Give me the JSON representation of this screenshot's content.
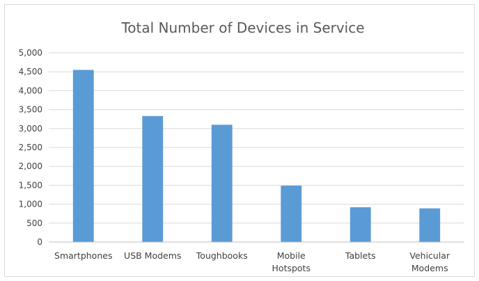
{
  "chart_data": {
    "type": "bar",
    "title": "Total Number of Devices in Service",
    "xlabel": "",
    "ylabel": "",
    "categories": [
      [
        "Smartphones"
      ],
      [
        "USB Modems"
      ],
      [
        "Toughbooks"
      ],
      [
        "Mobile",
        "Hotspots"
      ],
      [
        "Tablets"
      ],
      [
        "Vehicular",
        "Modems"
      ]
    ],
    "values": [
      4550,
      3330,
      3100,
      1490,
      920,
      890
    ],
    "ylim": [
      0,
      5000
    ],
    "yticks": [
      0,
      500,
      1000,
      1500,
      2000,
      2500,
      3000,
      3500,
      4000,
      4500,
      5000
    ],
    "ytick_labels": [
      "0",
      "500",
      "1,000",
      "1,500",
      "2,000",
      "2,500",
      "3,000",
      "3,500",
      "4,000",
      "4,500",
      "5,000"
    ],
    "grid": true,
    "legend": "none",
    "bar_color": "#5b9bd5"
  }
}
